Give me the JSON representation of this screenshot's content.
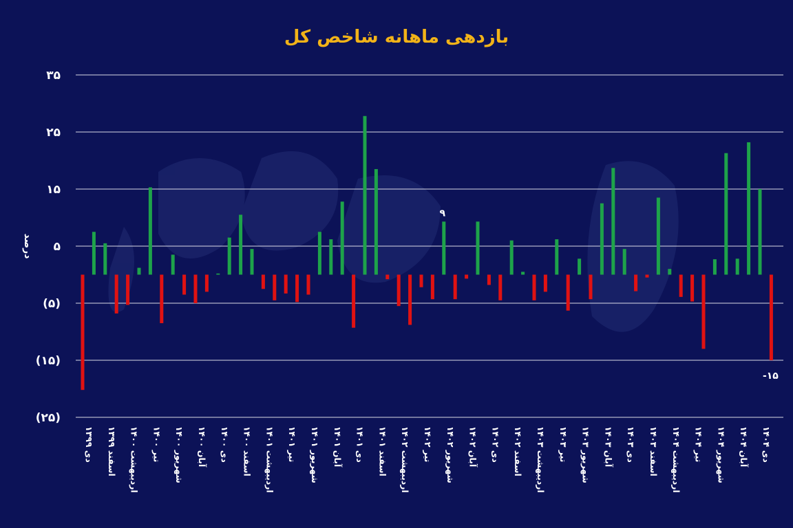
{
  "chart_data": {
    "type": "bar",
    "title": "بازدهی ماهانه شاخص کل",
    "ylabel": "درصد",
    "ylim": [
      -25,
      35
    ],
    "yticks": [
      35,
      25,
      15,
      5,
      -5,
      -15,
      -25
    ],
    "ytick_labels": [
      "۳۵",
      "۲۵",
      "۱۵",
      "۵",
      "(۵)",
      "(۱۵)",
      "(۲۵)"
    ],
    "grid": true,
    "legend": "none",
    "colors": {
      "positive": "#1ea34a",
      "negative": "#e01212",
      "background": "#0c1257",
      "title": "#f2b318"
    },
    "xtick_labels": [
      "دی ۱۳۹۹",
      "اسفند ۱۳۹۹",
      "اردیبهشت ۱۴۰۰",
      "تیر ۱۴۰۰",
      "شهریور ۱۴۰۰",
      "آبان ۱۴۰۰",
      "دی ۱۴۰۰",
      "اسفند ۱۴۰۰",
      "اردیبهشت ۱۴۰۱",
      "تیر ۱۴۰۱",
      "شهریور ۱۴۰۱",
      "آبان ۱۴۰۱",
      "دی ۱۴۰۱",
      "اسفند ۱۴۰۱",
      "اردیبهشت ۱۴۰۲",
      "تیر ۱۴۰۲",
      "شهریور ۱۴۰۲",
      "آبان ۱۴۰۲",
      "دی ۱۴۰۲",
      "اسفند ۱۴۰۲",
      "اردیبهشت ۱۴۰۳",
      "تیر ۱۴۰۳",
      "شهریور ۱۴۰۳",
      "آبان ۱۴۰۳",
      "دی ۱۴۰۳",
      "اسفند ۱۴۰۳",
      "اردیبهشت ۱۴۰۴",
      "تیر ۱۴۰۴",
      "شهریور ۱۴۰۴",
      "آبان ۱۴۰۴",
      "دی ۱۴۰۴"
    ],
    "values": [
      -20.2,
      7.5,
      5.5,
      -6.8,
      -5.3,
      1.2,
      15.3,
      -8.5,
      3.5,
      -3.5,
      -5,
      -3,
      0.2,
      6.5,
      10.5,
      4.5,
      -2.5,
      -4.5,
      -3.3,
      -4.8,
      -3.5,
      7.5,
      6.2,
      12.8,
      -9.3,
      27.8,
      18.5,
      -0.8,
      -5.5,
      -8.8,
      -2.2,
      -4.3,
      9.3,
      -4.3,
      -0.7,
      9.3,
      -1.8,
      -4.5,
      6,
      0.5,
      -4.5,
      -3,
      6.2,
      -6.3,
      2.8,
      -4.3,
      12.5,
      18.7,
      4.5,
      -2.9,
      -0.5,
      13.5,
      1,
      -3.9,
      -4.7,
      -13,
      2.7,
      21.3,
      2.8,
      23.2,
      15,
      -15
    ],
    "data_labels": [
      {
        "index": 32,
        "text": "۹"
      },
      {
        "index": 61,
        "text": "-۱۵"
      }
    ]
  }
}
